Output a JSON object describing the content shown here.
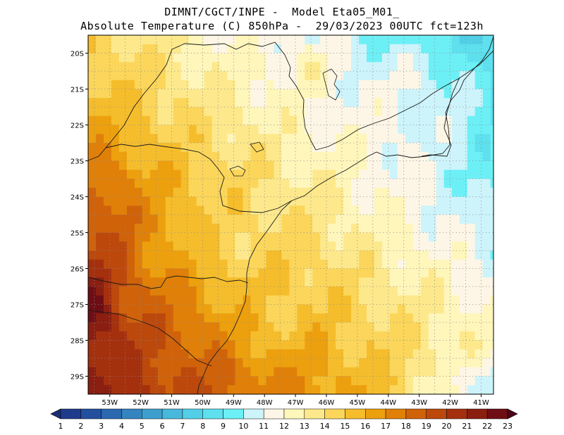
{
  "title_line1": "DIMNT/CGCT/INPE -  Model Eta05_M01_",
  "title_line2": "Absolute Temperature (C) 850hPa -  29/03/2023 00UTC fct=123h",
  "lat_labels": [
    "20S",
    "21S",
    "22S",
    "23S",
    "24S",
    "25S",
    "26S",
    "27S",
    "28S",
    "29S"
  ],
  "lon_labels": [
    "53W",
    "52W",
    "51W",
    "50W",
    "49W",
    "48W",
    "47W",
    "46W",
    "45W",
    "44W",
    "43W",
    "42W",
    "41W"
  ],
  "colorbar": {
    "labels": [
      "1",
      "2",
      "3",
      "4",
      "5",
      "6",
      "7",
      "8",
      "9",
      "10",
      "11",
      "12",
      "13",
      "14",
      "15",
      "16",
      "17",
      "18",
      "19",
      "20",
      "21",
      "22",
      "23"
    ],
    "colors": [
      "#1f3c8c",
      "#23509e",
      "#2a68b0",
      "#3484c0",
      "#3e9fcf",
      "#48b9dc",
      "#52cfe6",
      "#5ee0ee",
      "#6cf0f6",
      "#cdf4fb",
      "#fdf6e6",
      "#fef6bb",
      "#fde98c",
      "#fbd65a",
      "#f5bd2c",
      "#eda00e",
      "#e08008",
      "#d0620a",
      "#bc480c",
      "#a4300e",
      "#8a1e10",
      "#6e0e14",
      "#55061a"
    ],
    "end_colors": [
      "#1a2e74",
      "#4e0418"
    ]
  },
  "field": {
    "lat_range": [
      -29.5,
      -19.5
    ],
    "lon_range": [
      -53.7,
      -40.6
    ],
    "grid_resolution_deg": 0.25,
    "grid_spacing_deg": 0.5
  }
}
